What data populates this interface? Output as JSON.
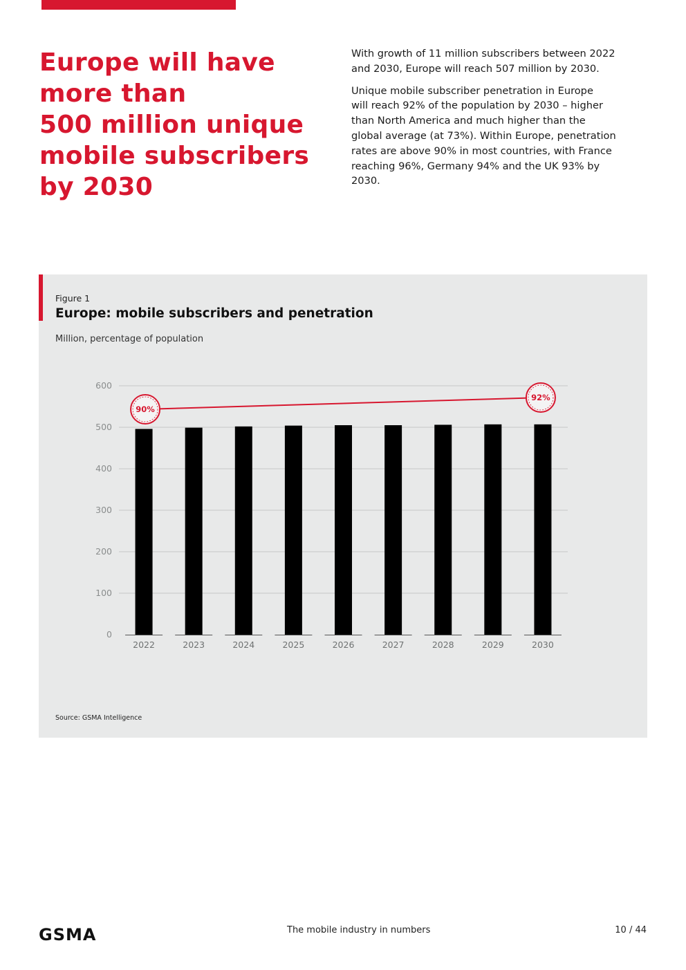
{
  "header": {
    "accent_color": "#d7172f",
    "headline_lines": [
      "Europe will have",
      "more than",
      "500 million unique",
      "mobile subscribers",
      "by 2030"
    ]
  },
  "intro": {
    "paragraph1_lines": [
      "With growth of 11 million subscribers between 2022",
      "and 2030, Europe will reach 507 million by 2030."
    ],
    "paragraph2_lines": [
      "Unique mobile subscriber penetration in Europe",
      "will reach 92% of the population by 2030 – higher",
      "than North America and much higher than the",
      "global average (at 73%). Within Europe, penetration",
      "rates are above 90% in most countries, with France",
      "reaching 96%, Germany 94% and the UK 93% by",
      "2030."
    ]
  },
  "figure": {
    "label": "Figure 1",
    "title": "Europe: mobile subscribers and penetration",
    "subtitle": "Million, percentage of population",
    "source": "Source: GSMA Intelligence"
  },
  "chart_data": {
    "type": "bar",
    "categories": [
      "2022",
      "2023",
      "2024",
      "2025",
      "2026",
      "2027",
      "2028",
      "2029",
      "2030"
    ],
    "series": [
      {
        "name": "Unique mobile subscribers (million)",
        "type": "bar",
        "color": "#000000",
        "values": [
          496,
          499,
          502,
          504,
          505,
          505,
          506,
          507,
          507
        ]
      },
      {
        "name": "Penetration (% of population)",
        "type": "line",
        "color": "#d7172f",
        "values": [
          90,
          90.25,
          90.5,
          90.75,
          91,
          91.25,
          91.5,
          91.75,
          92
        ]
      }
    ],
    "ylim": [
      0,
      600
    ],
    "yticks": [
      0,
      100,
      200,
      300,
      400,
      500,
      600
    ],
    "ytick_labels": [
      "0",
      "100",
      "200",
      "300",
      "400",
      "500",
      "600"
    ],
    "grid": true,
    "annotations": [
      {
        "category": "2022",
        "label": "90%"
      },
      {
        "category": "2030",
        "label": "92%"
      }
    ]
  },
  "footer": {
    "logo": "GSMA",
    "center_text": "The mobile industry in numbers",
    "page": "10 / 44"
  }
}
